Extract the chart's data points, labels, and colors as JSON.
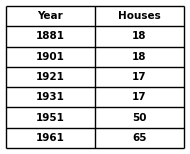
{
  "headers": [
    "Year",
    "Houses"
  ],
  "rows": [
    [
      "1881",
      "18"
    ],
    [
      "1901",
      "18"
    ],
    [
      "1921",
      "17"
    ],
    [
      "1931",
      "17"
    ],
    [
      "1951",
      "50"
    ],
    [
      "1961",
      "65"
    ]
  ],
  "header_bg": "#ffffff",
  "row_bg": "#ffffff",
  "border_color": "#000000",
  "text_color": "#000000",
  "font_size": 7.5,
  "fig_width": 1.9,
  "fig_height": 1.54,
  "dpi": 100
}
